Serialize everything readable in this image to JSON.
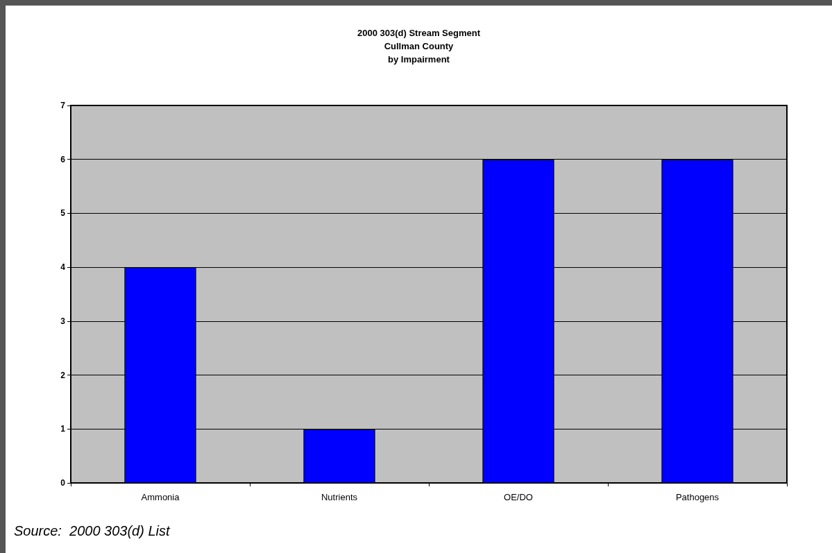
{
  "chart_data": {
    "type": "bar",
    "title": "2000 303(d) Stream Segment\nCullman County\nby Impairment",
    "categories": [
      "Ammonia",
      "Nutrients",
      "OE/DO",
      "Pathogens"
    ],
    "values": [
      4,
      1,
      6,
      6
    ],
    "color": "#0000ff",
    "ylim": [
      0,
      7
    ],
    "yticks": [
      0,
      1,
      2,
      3,
      4,
      5,
      6,
      7
    ],
    "grid": "y",
    "annotations": [
      "Source:  2000 303(d) List"
    ]
  }
}
